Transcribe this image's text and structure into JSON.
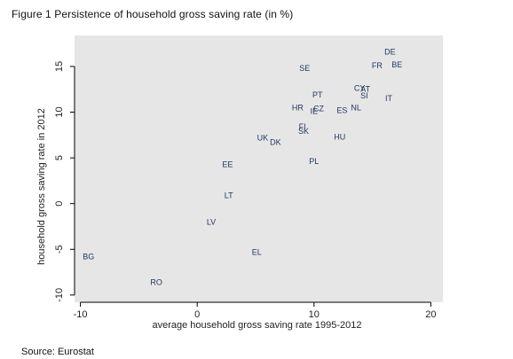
{
  "figure_title": "Figure 1 Persistence of household gross saving rate (in %)",
  "source": "Source: Eurostat",
  "colors": {
    "plot_background": "#e6e6e6",
    "point_label": "#1f3864",
    "axis": "#000000"
  },
  "chart_data": {
    "type": "scatter",
    "title": "",
    "xlabel": "average household gross saving rate 1995-2012",
    "ylabel": "household gross saving rate in 2012",
    "xlim": [
      -10.5,
      20.5
    ],
    "ylim": [
      -10.5,
      18
    ],
    "xticks": [
      -10,
      0,
      10,
      20
    ],
    "yticks": [
      -10,
      -5,
      0,
      5,
      10,
      15
    ],
    "grid": false,
    "legend": "none",
    "points": [
      {
        "label": "DE",
        "x": 16.5,
        "y": 16.6
      },
      {
        "label": "FR",
        "x": 15.4,
        "y": 15.1
      },
      {
        "label": "BE",
        "x": 17.1,
        "y": 15.2
      },
      {
        "label": "SE",
        "x": 9.2,
        "y": 14.8
      },
      {
        "label": "CY",
        "x": 13.9,
        "y": 12.6
      },
      {
        "label": "AT",
        "x": 14.4,
        "y": 12.5
      },
      {
        "label": "SI",
        "x": 14.3,
        "y": 11.8
      },
      {
        "label": "IT",
        "x": 16.4,
        "y": 11.5
      },
      {
        "label": "PT",
        "x": 10.3,
        "y": 11.9
      },
      {
        "label": "HR",
        "x": 8.6,
        "y": 10.5
      },
      {
        "label": "CZ",
        "x": 10.4,
        "y": 10.4
      },
      {
        "label": "IE",
        "x": 10.0,
        "y": 10.1
      },
      {
        "label": "ES",
        "x": 12.4,
        "y": 10.2
      },
      {
        "label": "NL",
        "x": 13.6,
        "y": 10.5
      },
      {
        "label": "FI",
        "x": 9.0,
        "y": 8.4
      },
      {
        "label": "SK",
        "x": 9.1,
        "y": 7.9
      },
      {
        "label": "HU",
        "x": 12.2,
        "y": 7.3
      },
      {
        "label": "UK",
        "x": 5.6,
        "y": 7.2
      },
      {
        "label": "DK",
        "x": 6.7,
        "y": 6.7
      },
      {
        "label": "PL",
        "x": 10.0,
        "y": 4.6
      },
      {
        "label": "EE",
        "x": 2.6,
        "y": 4.3
      },
      {
        "label": "LT",
        "x": 2.7,
        "y": 0.9
      },
      {
        "label": "LV",
        "x": 1.2,
        "y": -2.0
      },
      {
        "label": "EL",
        "x": 5.1,
        "y": -5.3
      },
      {
        "label": "BG",
        "x": -9.3,
        "y": -5.8
      },
      {
        "label": "RO",
        "x": -3.5,
        "y": -8.6
      }
    ]
  }
}
